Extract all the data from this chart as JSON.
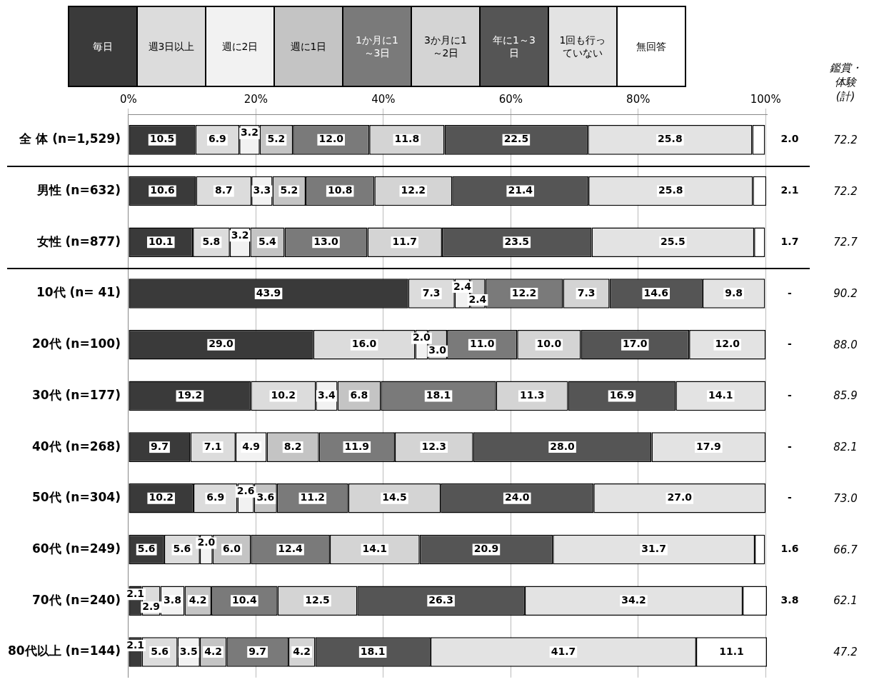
{
  "chart_data": {
    "type": "bar",
    "orientation": "horizontal",
    "stacked": true,
    "legend": "top",
    "grid": "x",
    "categories": [
      "全 体 (n=1,529)",
      "男性 (n=632)",
      "女性 (n=877)",
      "10代 (n= 41)",
      "20代 (n=100)",
      "30代 (n=177)",
      "40代 (n=268)",
      "50代 (n=304)",
      "60代 (n=249)",
      "70代 (n=240)",
      "80代以上 (n=144)"
    ],
    "xlim": [
      0,
      100.2
    ],
    "xticks": [
      {
        "value": 0,
        "label": "0%"
      },
      {
        "value": 20,
        "label": "20%"
      },
      {
        "value": 40,
        "label": "40%"
      },
      {
        "value": 60,
        "label": "60%"
      },
      {
        "value": 80,
        "label": "80%"
      },
      {
        "value": 100,
        "label": "100%"
      }
    ],
    "series": [
      {
        "name": "毎日",
        "color": "#3a3a3a",
        "values": [
          10.5,
          10.6,
          10.1,
          43.9,
          29.0,
          19.2,
          9.7,
          10.2,
          5.6,
          2.1,
          2.1
        ],
        "value_labels": [
          "10.5",
          "10.6",
          "10.1",
          "43.9",
          "29.0",
          "19.2",
          "9.7",
          "10.2",
          "5.6",
          "2.1",
          "2.1"
        ]
      },
      {
        "name": "週3日以上",
        "color": "#dcdcdc",
        "values": [
          6.9,
          8.7,
          5.8,
          7.3,
          16.0,
          10.2,
          7.1,
          6.9,
          5.6,
          2.9,
          5.6
        ],
        "value_labels": [
          "6.9",
          "8.7",
          "5.8",
          "7.3",
          "16.0",
          "10.2",
          "7.1",
          "6.9",
          "5.6",
          "2.9",
          "5.6"
        ]
      },
      {
        "name": "週に2日",
        "color": "#f2f2f2",
        "values": [
          3.2,
          3.3,
          3.2,
          2.4,
          2.0,
          3.4,
          4.9,
          2.6,
          2.0,
          3.8,
          3.5
        ],
        "value_labels": [
          "3.2",
          "3.3",
          "3.2",
          "2.4",
          "2.0",
          "3.4",
          "4.9",
          "2.6",
          "2.0",
          "3.8",
          "3.5"
        ]
      },
      {
        "name": "週に1日",
        "color": "#c4c4c4",
        "values": [
          5.2,
          5.2,
          5.4,
          2.4,
          3.0,
          6.8,
          8.2,
          3.6,
          6.0,
          4.2,
          4.2
        ],
        "value_labels": [
          "5.2",
          "5.2",
          "5.4",
          "2.4",
          "3.0",
          "6.8",
          "8.2",
          "3.6",
          "6.0",
          "4.2",
          "4.2"
        ]
      },
      {
        "name": "1か月に1～3日",
        "color": "#7a7a7a",
        "values": [
          12.0,
          10.8,
          13.0,
          12.2,
          11.0,
          18.1,
          11.9,
          11.2,
          12.4,
          10.4,
          9.7
        ],
        "value_labels": [
          "12.0",
          "10.8",
          "13.0",
          "12.2",
          "11.0",
          "18.1",
          "11.9",
          "11.2",
          "12.4",
          "10.4",
          "9.7"
        ]
      },
      {
        "name": "3か月に1～2日",
        "color": "#d4d4d4",
        "values": [
          11.8,
          12.2,
          11.7,
          7.3,
          10.0,
          11.3,
          12.3,
          14.5,
          14.1,
          12.5,
          4.2
        ],
        "value_labels": [
          "11.8",
          "12.2",
          "11.7",
          "7.3",
          "10.0",
          "11.3",
          "12.3",
          "14.5",
          "14.1",
          "12.5",
          "4.2"
        ]
      },
      {
        "name": "年に1～3日",
        "color": "#555555",
        "values": [
          22.5,
          21.4,
          23.5,
          14.6,
          17.0,
          16.9,
          28.0,
          24.0,
          20.9,
          26.3,
          18.1
        ],
        "value_labels": [
          "22.5",
          "21.4",
          "23.5",
          "14.6",
          "17.0",
          "16.9",
          "28.0",
          "24.0",
          "20.9",
          "26.3",
          "18.1"
        ]
      },
      {
        "name": "1回も行っていない",
        "color": "#e3e3e3",
        "values": [
          25.8,
          25.8,
          25.5,
          9.8,
          12.0,
          14.1,
          17.9,
          27.0,
          31.7,
          34.2,
          41.7
        ],
        "value_labels": [
          "25.8",
          "25.8",
          "25.5",
          "9.8",
          "12.0",
          "14.1",
          "17.9",
          "27.0",
          "31.7",
          "34.2",
          "41.7"
        ]
      },
      {
        "name": "無回答",
        "color": "#ffffff",
        "values": [
          2.0,
          2.1,
          1.7,
          0,
          0,
          0,
          0,
          0,
          1.6,
          3.8,
          11.1
        ],
        "value_labels": [
          "2.0",
          "2.1",
          "1.7",
          "-",
          "-",
          "-",
          "-",
          "-",
          "1.6",
          "3.8",
          "11.1"
        ]
      }
    ],
    "annotations": [
      "鑑賞・体験(計)",
      "72.2",
      "72.2",
      "72.7",
      "90.2",
      "88.0",
      "85.9",
      "82.1",
      "73.0",
      "66.7",
      "62.1",
      "47.2"
    ]
  }
}
